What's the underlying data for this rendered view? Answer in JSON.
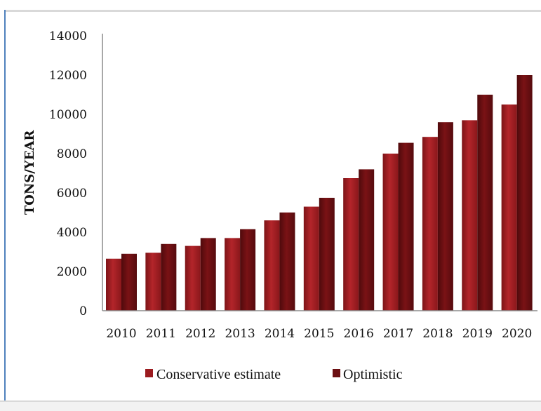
{
  "chart_data": {
    "type": "bar",
    "title": "",
    "xlabel": "",
    "ylabel": "TONS/YEAR",
    "ylim": [
      0,
      14000
    ],
    "yticks": [
      0,
      2000,
      4000,
      6000,
      8000,
      10000,
      12000,
      14000
    ],
    "categories": [
      "2010",
      "2011",
      "2012",
      "2013",
      "2014",
      "2015",
      "2016",
      "2017",
      "2018",
      "2019",
      "2020"
    ],
    "series": [
      {
        "name": "Conservative estimate",
        "color": "#9b1b1f",
        "values": [
          2650,
          2950,
          3300,
          3700,
          4600,
          5300,
          6750,
          8000,
          8850,
          9700,
          10500
        ]
      },
      {
        "name": "Optimistic",
        "color": "#6b0f12",
        "values": [
          2900,
          3400,
          3700,
          4150,
          5000,
          5750,
          7200,
          8550,
          9600,
          11000,
          12000
        ]
      }
    ],
    "grid": false,
    "legend_position": "bottom"
  }
}
